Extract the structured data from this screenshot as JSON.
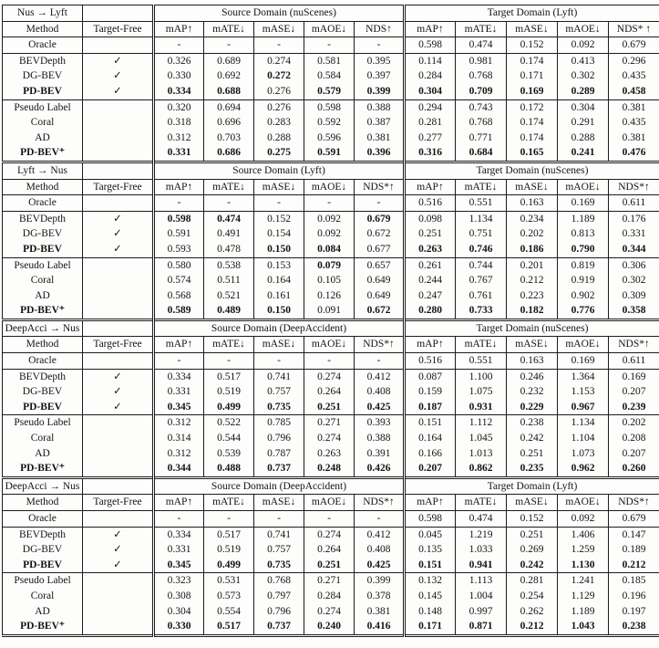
{
  "symbols": {
    "check": "✓"
  },
  "blocks": [
    {
      "title": "Nus → Lyft",
      "source_header": "Source Domain (nuScenes)",
      "target_header": "Target Domain (Lyft)",
      "method_header": "Method",
      "target_free_header": "Target-Free",
      "metric_headers": [
        "mAP↑",
        "mATE↓",
        "mASE↓",
        "mAOE↓",
        "NDS↑",
        "mAP↑",
        "mATE↓",
        "mASE↓",
        "mAOE↓",
        "NDS* ↑"
      ],
      "groups": [
        [
          {
            "method": "Oracle",
            "check": false,
            "values": [
              "-",
              "-",
              "-",
              "-",
              "-",
              "0.598",
              "0.474",
              "0.152",
              "0.092",
              "0.679"
            ]
          }
        ],
        [
          {
            "method": "BEVDepth",
            "check": true,
            "values": [
              "0.326",
              "0.689",
              "0.274",
              "0.581",
              "0.395",
              "0.114",
              "0.981",
              "0.174",
              "0.413",
              "0.296"
            ]
          },
          {
            "method": "DG-BEV",
            "check": true,
            "values": [
              "0.330",
              "0.692",
              "0.272",
              "0.584",
              "0.397",
              "0.284",
              "0.768",
              "0.171",
              "0.302",
              "0.435"
            ],
            "bold": [
              0,
              0,
              1,
              0,
              0,
              0,
              0,
              0,
              0,
              0
            ]
          },
          {
            "method": "PD-BEV",
            "bold_method": true,
            "check": true,
            "values": [
              "0.334",
              "0.688",
              "0.276",
              "0.579",
              "0.399",
              "0.304",
              "0.709",
              "0.169",
              "0.289",
              "0.458"
            ],
            "bold": [
              1,
              1,
              0,
              1,
              1,
              1,
              1,
              1,
              1,
              1
            ]
          }
        ],
        [
          {
            "method": "Pseudo Label",
            "check": false,
            "values": [
              "0.320",
              "0.694",
              "0.276",
              "0.598",
              "0.388",
              "0.294",
              "0.743",
              "0.172",
              "0.304",
              "0.381"
            ]
          },
          {
            "method": "Coral",
            "check": false,
            "values": [
              "0.318",
              "0.696",
              "0.283",
              "0.592",
              "0.387",
              "0.281",
              "0.768",
              "0.174",
              "0.291",
              "0.435"
            ]
          },
          {
            "method": "AD",
            "check": false,
            "values": [
              "0.312",
              "0.703",
              "0.288",
              "0.596",
              "0.381",
              "0.277",
              "0.771",
              "0.174",
              "0.288",
              "0.381"
            ]
          },
          {
            "method": "PD-BEV⁺",
            "bold_method": true,
            "check": false,
            "values": [
              "0.331",
              "0.686",
              "0.275",
              "0.591",
              "0.396",
              "0.316",
              "0.684",
              "0.165",
              "0.241",
              "0.476"
            ],
            "bold": [
              1,
              1,
              1,
              1,
              1,
              1,
              1,
              1,
              1,
              1
            ]
          }
        ]
      ]
    },
    {
      "title": "Lyft → Nus",
      "source_header": "Source Domain (Lyft)",
      "target_header": "Target Domain (nuScenes)",
      "method_header": "Method",
      "target_free_header": "Target-Free",
      "metric_headers": [
        "mAP↑",
        "mATE↓",
        "mASE↓",
        "mAOE↓",
        "NDS*↑",
        "mAP↑",
        "mATE↓",
        "mASE↓",
        "mAOE↓",
        "NDS*↑"
      ],
      "groups": [
        [
          {
            "method": "Oracle",
            "check": false,
            "values": [
              "-",
              "-",
              "-",
              "-",
              "-",
              "0.516",
              "0.551",
              "0.163",
              "0.169",
              "0.611"
            ]
          }
        ],
        [
          {
            "method": "BEVDepth",
            "check": true,
            "values": [
              "0.598",
              "0.474",
              "0.152",
              "0.092",
              "0.679",
              "0.098",
              "1.134",
              "0.234",
              "1.189",
              "0.176"
            ],
            "bold": [
              1,
              1,
              0,
              0,
              1,
              0,
              0,
              0,
              0,
              0
            ]
          },
          {
            "method": "DG-BEV",
            "check": true,
            "values": [
              "0.591",
              "0.491",
              "0.154",
              "0.092",
              "0.672",
              "0.251",
              "0.751",
              "0.202",
              "0.813",
              "0.331"
            ]
          },
          {
            "method": "PD-BEV",
            "bold_method": true,
            "check": true,
            "values": [
              "0.593",
              "0.478",
              "0.150",
              "0.084",
              "0.677",
              "0.263",
              "0.746",
              "0.186",
              "0.790",
              "0.344"
            ],
            "bold": [
              0,
              0,
              1,
              1,
              0,
              1,
              1,
              1,
              1,
              1
            ]
          }
        ],
        [
          {
            "method": "Pseudo Label",
            "check": false,
            "values": [
              "0.580",
              "0.538",
              "0.153",
              "0.079",
              "0.657",
              "0.261",
              "0.744",
              "0.201",
              "0.819",
              "0.306"
            ],
            "bold": [
              0,
              0,
              0,
              1,
              0,
              0,
              0,
              0,
              0,
              0
            ]
          },
          {
            "method": "Coral",
            "check": false,
            "values": [
              "0.574",
              "0.511",
              "0.164",
              "0.105",
              "0.649",
              "0.244",
              "0.767",
              "0.212",
              "0.919",
              "0.302"
            ]
          },
          {
            "method": "AD",
            "check": false,
            "values": [
              "0.568",
              "0.521",
              "0.161",
              "0.126",
              "0.649",
              "0.247",
              "0.761",
              "0.223",
              "0.902",
              "0.309"
            ]
          },
          {
            "method": "PD-BEV⁺",
            "bold_method": true,
            "check": false,
            "values": [
              "0.589",
              "0.489",
              "0.150",
              "0.091",
              "0.672",
              "0.280",
              "0.733",
              "0.182",
              "0.776",
              "0.358"
            ],
            "bold": [
              1,
              1,
              1,
              0,
              1,
              1,
              1,
              1,
              1,
              1
            ]
          }
        ]
      ]
    },
    {
      "title": "DeepAcci → Nus",
      "source_header": "Source Domain (DeepAccident)",
      "target_header": "Target Domain (nuScenes)",
      "method_header": "Method",
      "target_free_header": "Target-Free",
      "metric_headers": [
        "mAP↑",
        "mATE↓",
        "mASE↓",
        "mAOE↓",
        "NDS*↑",
        "mAP↑",
        "mATE↓",
        "mASE↓",
        "mAOE↓",
        "NDS*↑"
      ],
      "groups": [
        [
          {
            "method": "Oracle",
            "check": false,
            "values": [
              "-",
              "-",
              "-",
              "-",
              "-",
              "0.516",
              "0.551",
              "0.163",
              "0.169",
              "0.611"
            ]
          }
        ],
        [
          {
            "method": "BEVDepth",
            "check": true,
            "values": [
              "0.334",
              "0.517",
              "0.741",
              "0.274",
              "0.412",
              "0.087",
              "1.100",
              "0.246",
              "1.364",
              "0.169"
            ]
          },
          {
            "method": "DG-BEV",
            "check": true,
            "values": [
              "0.331",
              "0.519",
              "0.757",
              "0.264",
              "0.408",
              "0.159",
              "1.075",
              "0.232",
              "1.153",
              "0.207"
            ]
          },
          {
            "method": "PD-BEV",
            "bold_method": true,
            "check": true,
            "values": [
              "0.345",
              "0.499",
              "0.735",
              "0.251",
              "0.425",
              "0.187",
              "0.931",
              "0.229",
              "0.967",
              "0.239"
            ],
            "bold": [
              1,
              1,
              1,
              1,
              1,
              1,
              1,
              1,
              1,
              1
            ]
          }
        ],
        [
          {
            "method": "Pseudo Label",
            "check": false,
            "values": [
              "0.312",
              "0.522",
              "0.785",
              "0.271",
              "0.393",
              "0.151",
              "1.112",
              "0.238",
              "1.134",
              "0.202"
            ]
          },
          {
            "method": "Coral",
            "check": false,
            "values": [
              "0.314",
              "0.544",
              "0.796",
              "0.274",
              "0.388",
              "0.164",
              "1.045",
              "0.242",
              "1.104",
              "0.208"
            ]
          },
          {
            "method": "AD",
            "check": false,
            "values": [
              "0.312",
              "0.539",
              "0.787",
              "0.263",
              "0.391",
              "0.166",
              "1.013",
              "0.251",
              "1.073",
              "0.207"
            ]
          },
          {
            "method": "PD-BEV⁺",
            "bold_method": true,
            "check": false,
            "values": [
              "0.344",
              "0.488",
              "0.737",
              "0.248",
              "0.426",
              "0.207",
              "0.862",
              "0.235",
              "0.962",
              "0.260"
            ],
            "bold": [
              1,
              1,
              1,
              1,
              1,
              1,
              1,
              1,
              1,
              1
            ]
          }
        ]
      ]
    },
    {
      "title": "DeepAcci → Nus",
      "source_header": "Source Domain (DeepAccident)",
      "target_header": "Target Domain (Lyft)",
      "method_header": "Method",
      "target_free_header": "Target-Free",
      "metric_headers": [
        "mAP↑",
        "mATE↓",
        "mASE↓",
        "mAOE↓",
        "NDS*↑",
        "mAP↑",
        "mATE↓",
        "mASE↓",
        "mAOE↓",
        "NDS*↑"
      ],
      "groups": [
        [
          {
            "method": "Oracle",
            "check": false,
            "values": [
              "-",
              "-",
              "-",
              "-",
              "-",
              "0.598",
              "0.474",
              "0.152",
              "0.092",
              "0.679"
            ]
          }
        ],
        [
          {
            "method": "BEVDepth",
            "check": true,
            "values": [
              "0.334",
              "0.517",
              "0.741",
              "0.274",
              "0.412",
              "0.045",
              "1.219",
              "0.251",
              "1.406",
              "0.147"
            ]
          },
          {
            "method": "DG-BEV",
            "check": true,
            "values": [
              "0.331",
              "0.519",
              "0.757",
              "0.264",
              "0.408",
              "0.135",
              "1.033",
              "0.269",
              "1.259",
              "0.189"
            ]
          },
          {
            "method": "PD-BEV",
            "bold_method": true,
            "check": true,
            "values": [
              "0.345",
              "0.499",
              "0.735",
              "0.251",
              "0.425",
              "0.151",
              "0.941",
              "0.242",
              "1.130",
              "0.212"
            ],
            "bold": [
              1,
              1,
              1,
              1,
              1,
              1,
              1,
              1,
              1,
              1
            ]
          }
        ],
        [
          {
            "method": "Pseudo Label",
            "check": false,
            "values": [
              "0.323",
              "0.531",
              "0.768",
              "0.271",
              "0.399",
              "0.132",
              "1.113",
              "0.281",
              "1.241",
              "0.185"
            ]
          },
          {
            "method": "Coral",
            "check": false,
            "values": [
              "0.308",
              "0.573",
              "0.797",
              "0.284",
              "0.378",
              "0.145",
              "1.004",
              "0.254",
              "1.129",
              "0.196"
            ]
          },
          {
            "method": "AD",
            "check": false,
            "values": [
              "0.304",
              "0.554",
              "0.796",
              "0.274",
              "0.381",
              "0.148",
              "0.997",
              "0.262",
              "1.189",
              "0.197"
            ]
          },
          {
            "method": "PD-BEV⁺",
            "bold_method": true,
            "check": false,
            "values": [
              "0.330",
              "0.517",
              "0.737",
              "0.240",
              "0.416",
              "0.171",
              "0.871",
              "0.212",
              "1.043",
              "0.238"
            ],
            "bold": [
              1,
              1,
              1,
              1,
              1,
              1,
              1,
              1,
              1,
              1
            ]
          }
        ]
      ]
    }
  ]
}
